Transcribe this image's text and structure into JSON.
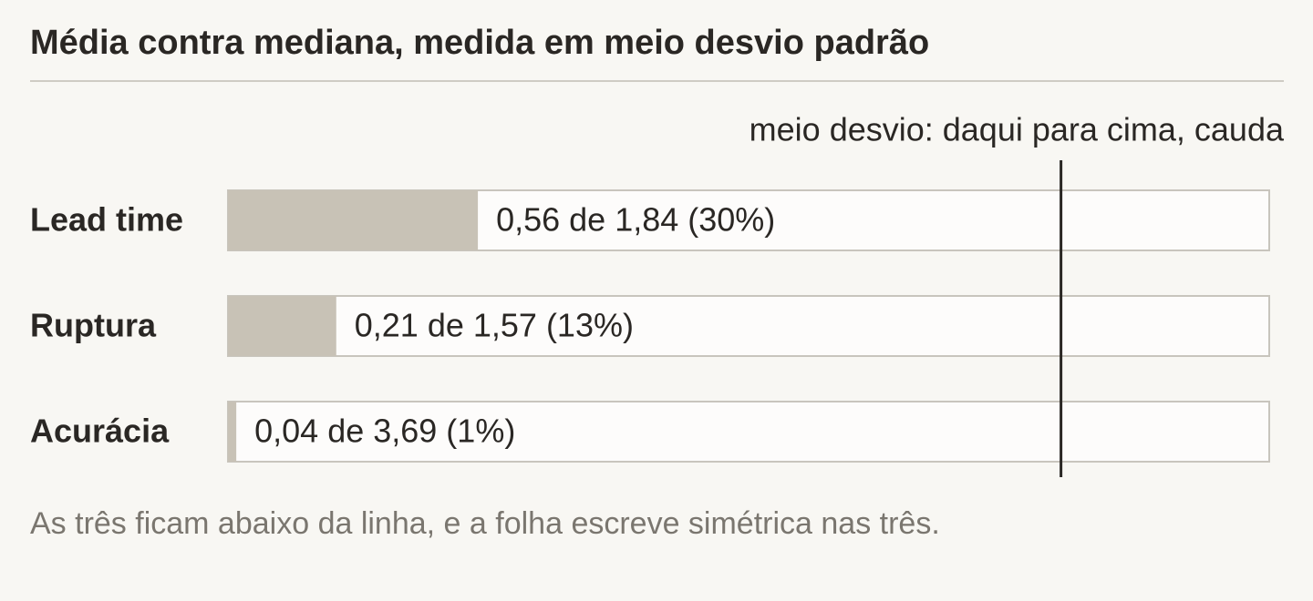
{
  "chart_data": {
    "type": "bar",
    "orientation": "horizontal",
    "title": "Média contra mediana, medida em meio desvio padrão",
    "annotation": "meio desvio: daqui para cima, cauda",
    "footnote": "As três ficam abaixo da linha, e a folha escreve simétrica nas três.",
    "categories": [
      "Lead time",
      "Ruptura",
      "Acurácia"
    ],
    "values": [
      30,
      13,
      1
    ],
    "value_labels": [
      "0,56 de 1,84 (30%)",
      "0,21 de 1,57 (13%)",
      "0,04 de 3,69 (1%)"
    ],
    "color": "#c8c2b6",
    "xlim": [
      0,
      125
    ],
    "threshold": 100
  }
}
